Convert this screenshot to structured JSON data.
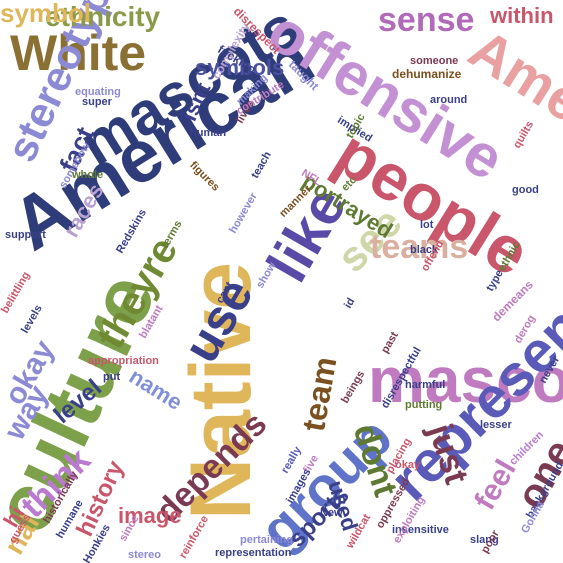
{
  "words": [
    {
      "text": "Native",
      "color": "#e0b65a"
    },
    {
      "text": "American",
      "color": "#2f3c7a"
    },
    {
      "text": "mascot",
      "color": "#c07ac0"
    },
    {
      "text": "mascots",
      "color": "#2f3c7a"
    },
    {
      "text": "offensive",
      "color": "#c390d4"
    },
    {
      "text": "people",
      "color": "#c9566a"
    },
    {
      "text": "culture",
      "color": "#7da04a"
    },
    {
      "text": "represent",
      "color": "#5a5ab8"
    },
    {
      "text": "group",
      "color": "#5f74c8"
    },
    {
      "text": "White",
      "color": "#8a7032"
    },
    {
      "text": "Americans",
      "color": "#e8a0a0"
    },
    {
      "text": "stereotypes",
      "color": "#8c8ad4"
    },
    {
      "text": "like",
      "color": "#5a4aa8"
    },
    {
      "text": "use",
      "color": "#3a3f8a"
    },
    {
      "text": "see",
      "color": "#cfd6a8"
    },
    {
      "text": "dont",
      "color": "#5e7a32"
    },
    {
      "text": "just",
      "color": "#7a3a52"
    },
    {
      "text": "one",
      "color": "#7a3a52"
    },
    {
      "text": "depends",
      "color": "#7a3a52"
    },
    {
      "text": "theyre",
      "color": "#6f8a32"
    },
    {
      "text": "think",
      "color": "#b97ad0"
    },
    {
      "text": "teams",
      "color": "#d9b0a0"
    },
    {
      "text": "team",
      "color": "#7a5020"
    },
    {
      "text": "sense",
      "color": "#b06ab8"
    },
    {
      "text": "ethnicity",
      "color": "#8a9a4a"
    },
    {
      "text": "symbols",
      "color": "#4a52a0"
    },
    {
      "text": "portrayed",
      "color": "#5e7a32"
    },
    {
      "text": "races",
      "color": "#b8a0d0"
    },
    {
      "text": "fact",
      "color": "#3a3f8a"
    },
    {
      "text": "isnt",
      "color": "#3a3f8a"
    },
    {
      "text": "name",
      "color": "#8090d8"
    },
    {
      "text": "level",
      "color": "#3a3f8a"
    },
    {
      "text": "history",
      "color": "#c9566a"
    },
    {
      "text": "image",
      "color": "#c9566a"
    },
    {
      "text": "feel",
      "color": "#c07ac0"
    },
    {
      "text": "used",
      "color": "#3a3f8a"
    },
    {
      "text": "sports",
      "color": "#3a3f8a"
    },
    {
      "text": "okay",
      "color": "#8c8ad4"
    },
    {
      "text": "symbol",
      "color": "#e0b65a"
    },
    {
      "text": "within",
      "color": "#c9566a"
    },
    {
      "text": "nal",
      "color": "#e0b65a"
    },
    {
      "text": "hi",
      "color": "#c9566a"
    },
    {
      "text": "way",
      "color": "#8c8ad4"
    },
    {
      "text": "complexity",
      "color": "#b8a0d0"
    },
    {
      "text": "disrespect",
      "color": "#c9566a"
    },
    {
      "text": "dehumanize",
      "color": "#7a5020"
    },
    {
      "text": "fucking",
      "color": "#3a3f8a"
    },
    {
      "text": "taught",
      "color": "#8c8ad4"
    },
    {
      "text": "equating",
      "color": "#8c8ad4"
    },
    {
      "text": "super",
      "color": "#3a3f8a"
    },
    {
      "text": "lives",
      "color": "#7a3a52"
    },
    {
      "text": "making",
      "color": "#8c8ad4"
    },
    {
      "text": "contribute",
      "color": "#c07ac0"
    },
    {
      "text": "implied",
      "color": "#3a3f8a"
    },
    {
      "text": "topic",
      "color": "#5e7a32"
    },
    {
      "text": "human",
      "color": "#3a3f8a"
    },
    {
      "text": "figures",
      "color": "#7a5020"
    },
    {
      "text": "teach",
      "color": "#3a3f8a"
    },
    {
      "text": "NFL",
      "color": "#c07ac0"
    },
    {
      "text": "etc",
      "color": "#5e7a32"
    },
    {
      "text": "lot",
      "color": "#3a3f8a"
    },
    {
      "text": "black",
      "color": "#3a3f8a"
    },
    {
      "text": "offend",
      "color": "#c9566a"
    },
    {
      "text": "ethnic",
      "color": "#5e7a32"
    },
    {
      "text": "type",
      "color": "#3a3f8a"
    },
    {
      "text": "demeans",
      "color": "#c07ac0"
    },
    {
      "text": "derog",
      "color": "#c07ac0"
    },
    {
      "text": "good",
      "color": "#3a3f8a"
    },
    {
      "text": "quilts",
      "color": "#c9566a"
    },
    {
      "text": "around",
      "color": "#3a3f8a"
    },
    {
      "text": "someone",
      "color": "#7a3a52"
    },
    {
      "text": "support",
      "color": "#3a3f8a"
    },
    {
      "text": "somehow",
      "color": "#8c8ad4"
    },
    {
      "text": "whole",
      "color": "#5e7a32"
    },
    {
      "text": "however",
      "color": "#8c8ad4"
    },
    {
      "text": "manner",
      "color": "#7a5020"
    },
    {
      "text": "Redskins",
      "color": "#3a3f8a"
    },
    {
      "text": "terms",
      "color": "#5e7a32"
    },
    {
      "text": "belittling",
      "color": "#c9566a"
    },
    {
      "text": "levels",
      "color": "#3a3f8a"
    },
    {
      "text": "show",
      "color": "#8c8ad4"
    },
    {
      "text": "cant",
      "color": "#3a3f8a"
    },
    {
      "text": "id",
      "color": "#3a3f8a"
    },
    {
      "text": "past",
      "color": "#7a3a52"
    },
    {
      "text": "harmful",
      "color": "#3a3f8a"
    },
    {
      "text": "putting",
      "color": "#5e7a32"
    },
    {
      "text": "never",
      "color": "#3a3f8a"
    },
    {
      "text": "lesser",
      "color": "#3a3f8a"
    },
    {
      "text": "children",
      "color": "#b97ad0"
    },
    {
      "text": "appropriation",
      "color": "#c9566a"
    },
    {
      "text": "blatant",
      "color": "#c07ac0"
    },
    {
      "text": "put",
      "color": "#3a3f8a"
    },
    {
      "text": "beings",
      "color": "#7a3a52"
    },
    {
      "text": "disrespectful",
      "color": "#3a3f8a"
    },
    {
      "text": "really",
      "color": "#5a5ab8"
    },
    {
      "text": "five",
      "color": "#c07ac0"
    },
    {
      "text": "New",
      "color": "#3a3f8a"
    },
    {
      "text": "wildcat",
      "color": "#c9566a"
    },
    {
      "text": "images",
      "color": "#3a3f8a"
    },
    {
      "text": "pertaining",
      "color": "#8c8ad4"
    },
    {
      "text": "representation",
      "color": "#3a3f8a"
    },
    {
      "text": "reinforce",
      "color": "#c9566a"
    },
    {
      "text": "stereo",
      "color": "#8c8ad4"
    },
    {
      "text": "historically",
      "color": "#7a3a52"
    },
    {
      "text": "humane",
      "color": "#3a3f8a"
    },
    {
      "text": "guess",
      "color": "#c9566a"
    },
    {
      "text": "Honkies",
      "color": "#3a3f8a"
    },
    {
      "text": "since",
      "color": "#c07ac0"
    },
    {
      "text": "oppressed",
      "color": "#7a3a52"
    },
    {
      "text": "insensitive",
      "color": "#3a3f8a"
    },
    {
      "text": "exploiting",
      "color": "#c07ac0"
    },
    {
      "text": "slang",
      "color": "#3a3f8a"
    },
    {
      "text": "poor",
      "color": "#7a3a52"
    },
    {
      "text": "placing",
      "color": "#c9566a"
    },
    {
      "text": "background",
      "color": "#3a3f8a"
    },
    {
      "text": "okay",
      "color": "#c9566a"
    },
    {
      "text": "Gonna",
      "color": "#8c8ad4"
    }
  ]
}
